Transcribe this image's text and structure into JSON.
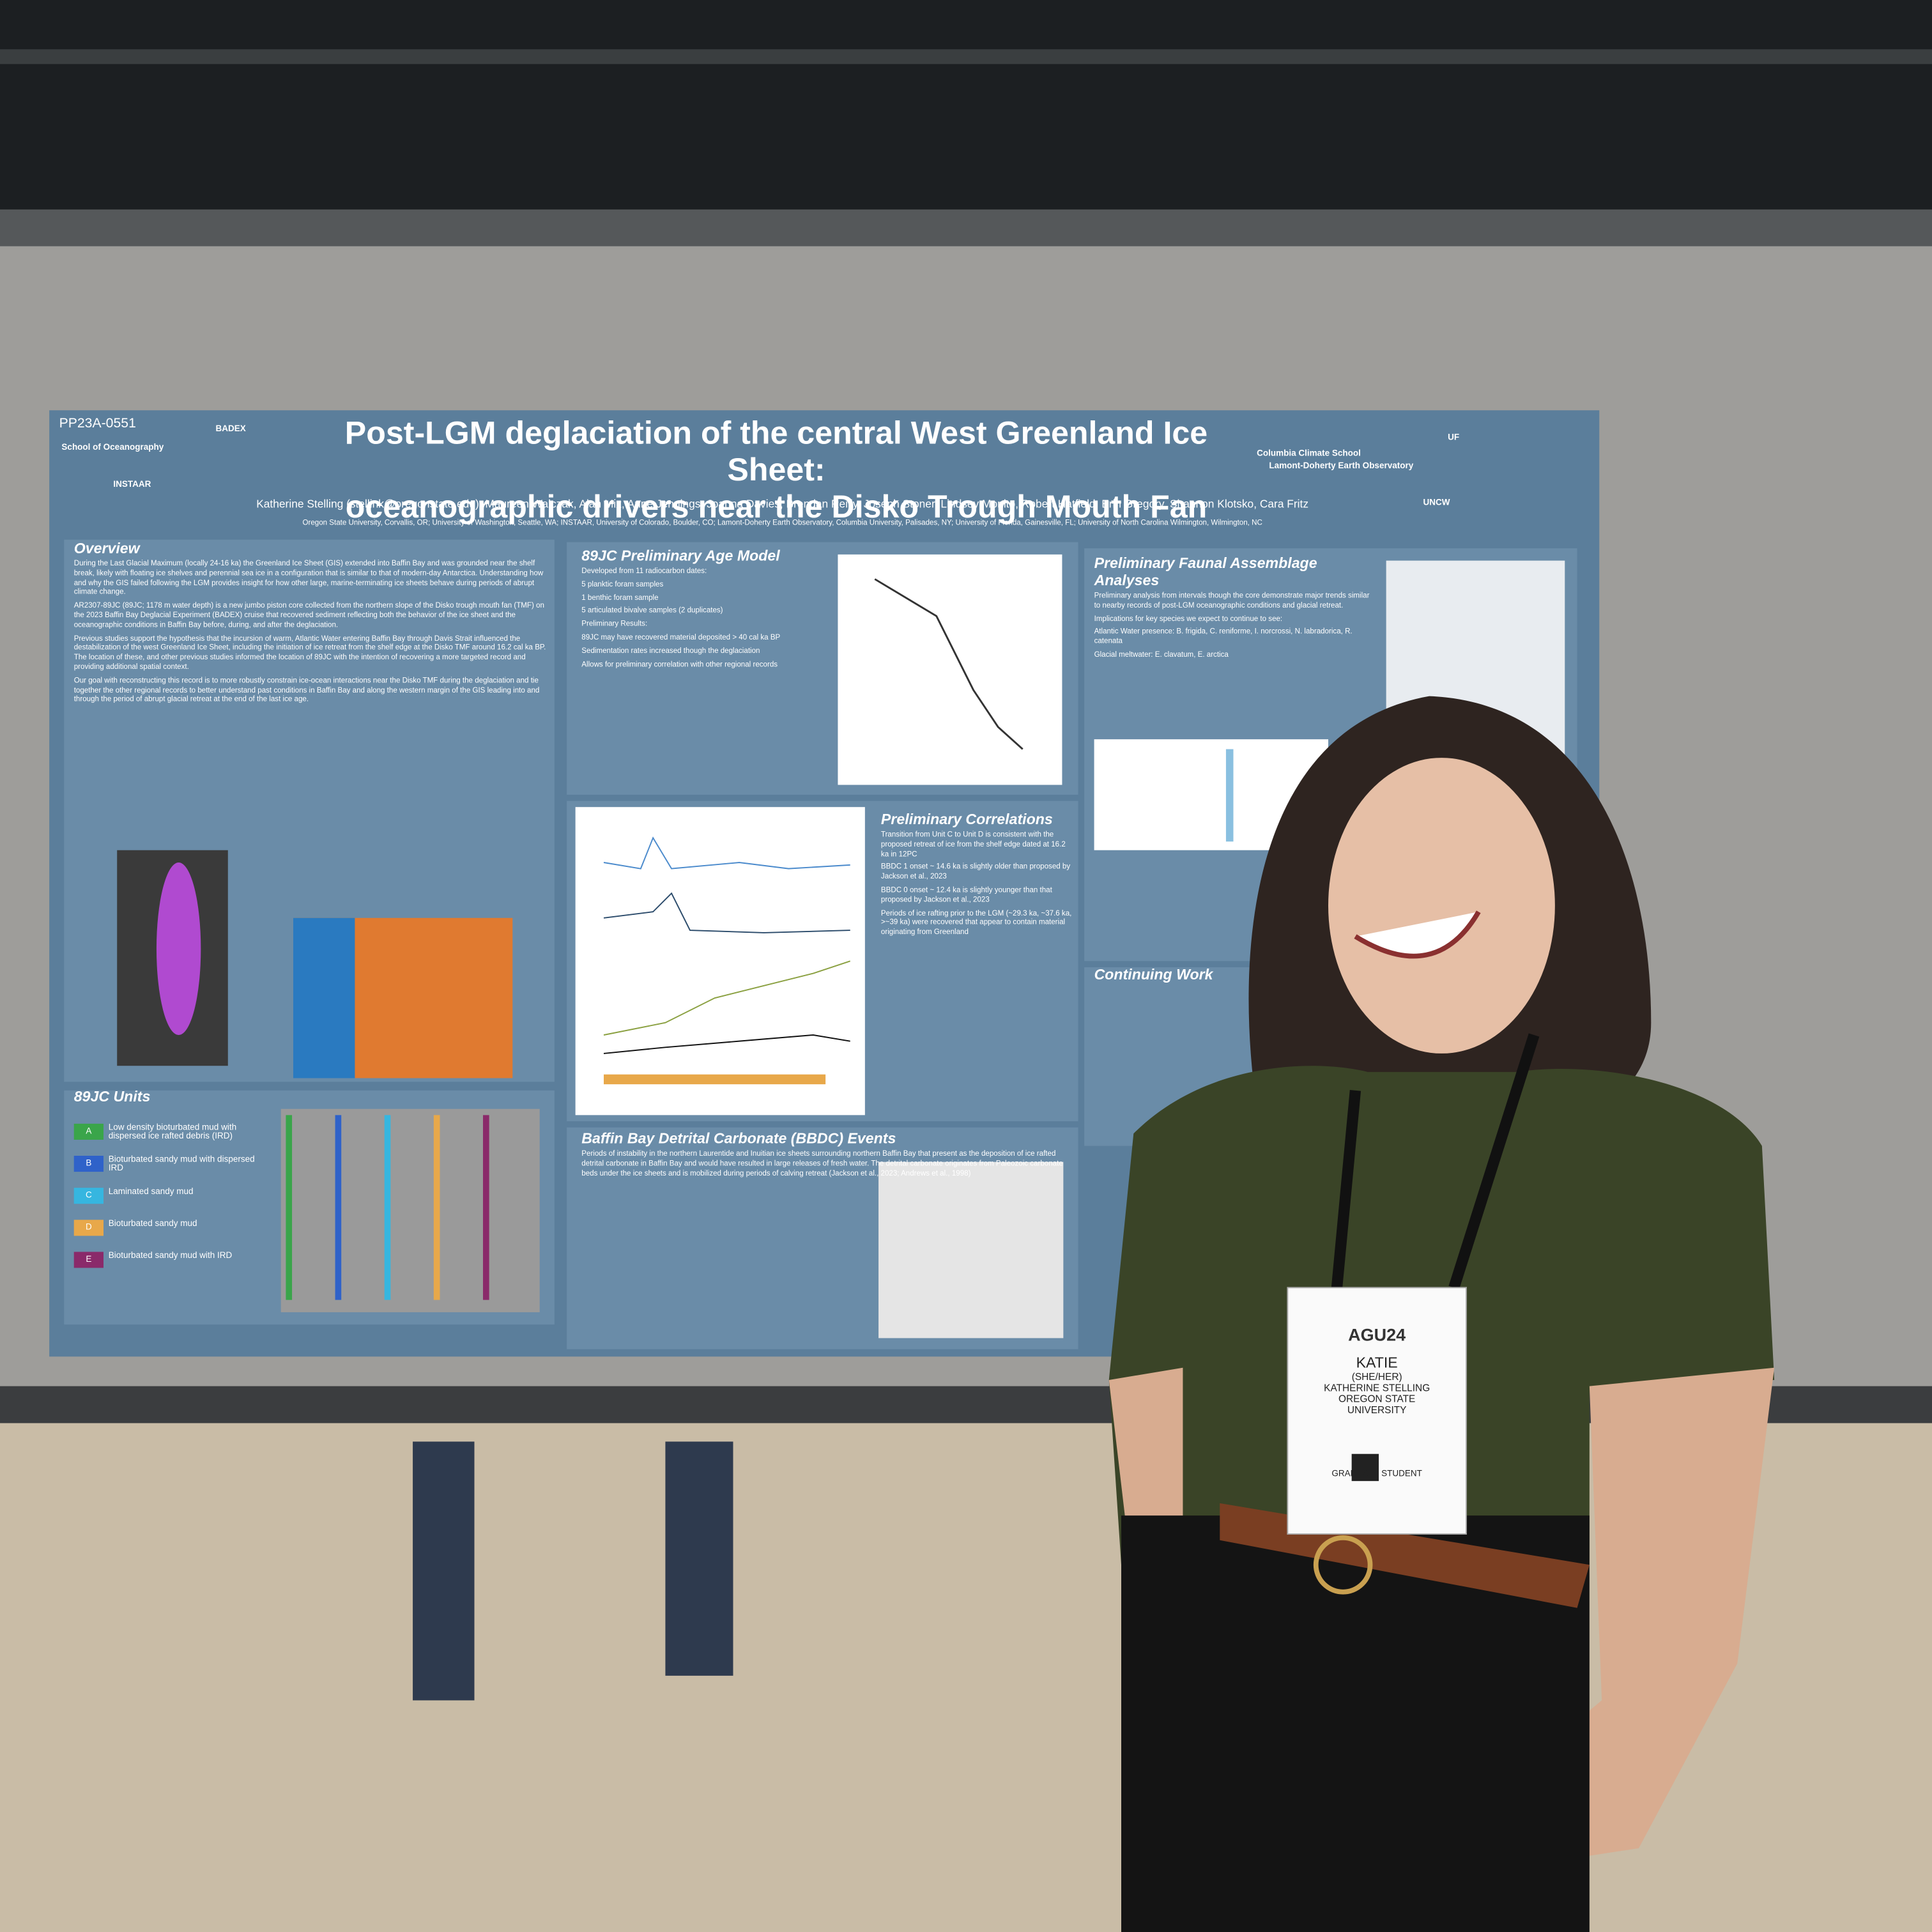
{
  "poster": {
    "id": "PP23A-0551",
    "title_line1": "Post-LGM deglaciation of the central West Greenland Ice Sheet:",
    "title_line2": "oceanographic drivers near the Disko Trough Mouth Fan",
    "authors": "Katherine Stelling (stellink@oregonstate.edu), Maureen Walczak, Alan Mix, Anne Jennings, Joanna Davies, Brendan Reilly, Joseph Stoner, Lindsey Monito, Robert Hatfield, Erin Gregory, Shannon Klotsko, Cara Fritz",
    "affiliations": "Oregon State University, Corvallis, OR; University of Washington, Seattle, WA; INSTAAR, University of Colorado, Boulder, CO; Lamont-Doherty Earth Observatory, Columbia University, Palisades, NY; University of Florida, Gainesville, FL; University of North Carolina Wilmington, Wilmington, NC",
    "logos": [
      "School of Oceanography",
      "BADEX",
      "INSTAAR",
      "Columbia Climate School",
      "Lamont-Doherty Earth Observatory",
      "UF",
      "UNCW"
    ]
  },
  "sections": [
    {
      "heading": "Overview",
      "paragraphs": [
        "During the Last Glacial Maximum (locally 24-16 ka) the Greenland Ice Sheet (GIS) extended into Baffin Bay and was grounded near the shelf break, likely with floating ice shelves and perennial sea ice in a configuration that is similar to that of modern-day Antarctica. Understanding how and why the GIS failed following the LGM provides insight for how other large, marine-terminating ice sheets behave during periods of abrupt climate change.",
        "AR2307-89JC (89JC; 1178 m water depth) is a new jumbo piston core collected from the northern slope of the Disko trough mouth fan (TMF) on the 2023 Baffin Bay Deglacial Experiment (BADEX) cruise that recovered sediment reflecting both the behavior of the ice sheet and the oceanographic conditions in Baffin Bay before, during, and after the deglaciation.",
        "Previous studies support the hypothesis that the incursion of warm, Atlantic Water entering Baffin Bay through Davis Strait influenced the destabilization of the west Greenland Ice Sheet, including the initiation of ice retreat from the shelf edge at the Disko TMF around 16.2 cal ka BP. The location of these, and other previous studies informed the location of 89JC with the intention of recovering a more targeted record and providing additional spatial context.",
        "Our goal with reconstructing this record is to more robustly constrain ice-ocean interactions near the Disko TMF during the deglaciation and tie together the other regional records to better understand past conditions in Baffin Bay and along the western margin of the GIS leading into and through the period of abrupt glacial retreat at the end of the last ice age."
      ]
    },
    {
      "heading": "89JC Preliminary Age Model",
      "paragraphs": [
        "Developed from 11 radiocarbon dates:",
        "5 planktic foram samples",
        "1 benthic foram sample",
        "5 articulated bivalve samples (2 duplicates)",
        "Preliminary Results:",
        "89JC may have recovered material deposited > 40 cal ka BP",
        "Sedimentation rates increased though the deglaciation",
        "Allows for preliminary correlation with other regional records"
      ]
    },
    {
      "heading": "Preliminary Faunal Assemblage Analyses",
      "paragraphs": [
        "Preliminary analysis from intervals though the core demonstrate major trends similar to nearby records of post-LGM oceanographic conditions and glacial retreat.",
        "Implications for key species we expect to continue to see:",
        "Atlantic Water presence: B. frigida, C. reniforme, I. norcrossi, N. labradorica, R. catenata",
        "Glacial meltwater: E. clavatum, E. arctica"
      ]
    },
    {
      "heading": "Preliminary Correlations",
      "paragraphs": [
        "Transition from Unit C to Unit D is consistent with the proposed retreat of ice from the shelf edge dated at 16.2 ka in 12PC",
        "BBDC 1 onset ~ 14.6 ka is slightly older than proposed by Jackson et al., 2023",
        "BBDC 0 onset ~ 12.4 ka is slightly younger than that proposed by Jackson et al., 2023",
        "Periods of ice rafting prior to the LGM (~29.3 ka, ~37.6 ka, >~39 ka) were recovered that appear to contain material originating from Greenland"
      ]
    },
    {
      "heading": "Continuing Work",
      "paragraphs": []
    },
    {
      "heading": "Baffin Bay Detrital Carbonate (BBDC) Events",
      "paragraphs": [
        "Periods of instability in the northern Laurentide and Inuitian ice sheets surrounding northern Baffin Bay that present as the deposition of ice rafted detrital carbonate in Baffin Bay and would have resulted in large releases of fresh water. The detrital carbonate originates from Paleozoic carbonate beds under the ice sheets and is mobilized during periods of calving retreat (Jackson et al., 2023; Andrews et al., 1998)"
      ]
    },
    {
      "heading": "89JC Units",
      "paragraphs": []
    }
  ],
  "units": [
    {
      "label": "A",
      "text": "Low density bioturbated mud with dispersed ice rafted debris (IRD)",
      "color": "#3aa54a"
    },
    {
      "label": "B",
      "text": "Bioturbated sandy mud with dispersed IRD",
      "color": "#2f62c9"
    },
    {
      "label": "C",
      "text": "Laminated sandy mud",
      "color": "#36b6e0"
    },
    {
      "label": "D",
      "text": "Bioturbated sandy mud",
      "color": "#e8a84a"
    },
    {
      "label": "E",
      "text": "Bioturbated sandy mud with IRD",
      "color": "#8a2a6a"
    }
  ],
  "badge": {
    "event": "AGU24",
    "name": "KATIE",
    "pronouns": "(SHE/HER)",
    "full_name": "KATHERINE STELLING",
    "affiliation": "OREGON STATE UNIVERSITY",
    "role": "GRADUATE STUDENT"
  }
}
